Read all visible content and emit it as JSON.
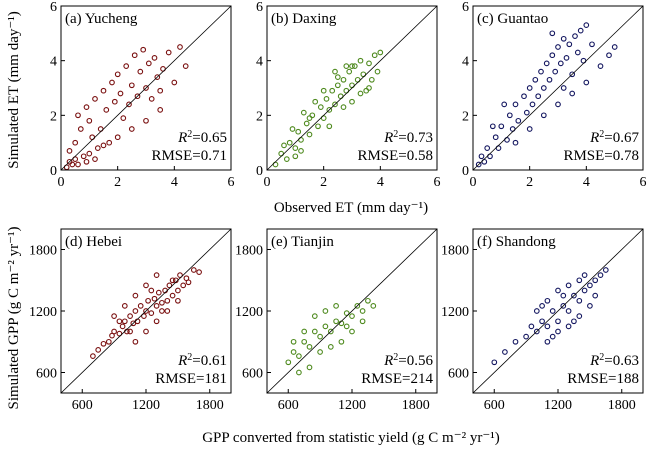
{
  "figure": {
    "ylabel_top": "Simulated ET (mm day⁻¹)",
    "xlabel_top": "Observed ET (mm day⁻¹)",
    "ylabel_bottom": "Simulated GPP (g C m⁻² yr⁻¹)",
    "xlabel_bottom": "GPP converted from statistic yield (g C m⁻² yr⁻¹)"
  },
  "chart_data": [
    {
      "type": "scatter",
      "panel": "(a) Yucheng",
      "marker_color": "#7a1010",
      "xlim": [
        0,
        6
      ],
      "ylim": [
        0,
        6
      ],
      "xticks": [
        "0",
        "2",
        "4",
        "6"
      ],
      "yticks": [
        "0",
        "2",
        "4",
        "6"
      ],
      "one_to_one_line": true,
      "r2": "=0.65",
      "rmse": "RMSE=0.71",
      "points": [
        [
          0.2,
          0.1
        ],
        [
          0.3,
          0.3
        ],
        [
          0.4,
          0.2
        ],
        [
          0.5,
          0.4
        ],
        [
          0.6,
          0.2
        ],
        [
          0.8,
          0.5
        ],
        [
          0.9,
          0.3
        ],
        [
          1.0,
          0.6
        ],
        [
          1.2,
          0.4
        ],
        [
          1.3,
          0.8
        ],
        [
          0.5,
          1.0
        ],
        [
          0.7,
          1.5
        ],
        [
          0.6,
          2.0
        ],
        [
          0.9,
          2.3
        ],
        [
          1.0,
          1.8
        ],
        [
          1.2,
          2.6
        ],
        [
          1.4,
          1.5
        ],
        [
          1.5,
          2.9
        ],
        [
          1.6,
          2.2
        ],
        [
          1.8,
          3.2
        ],
        [
          1.9,
          2.5
        ],
        [
          2.0,
          3.5
        ],
        [
          2.1,
          2.8
        ],
        [
          2.3,
          3.8
        ],
        [
          2.4,
          2.4
        ],
        [
          2.5,
          3.1
        ],
        [
          2.6,
          4.2
        ],
        [
          2.7,
          2.7
        ],
        [
          2.8,
          3.6
        ],
        [
          2.9,
          4.4
        ],
        [
          3.0,
          3.0
        ],
        [
          3.1,
          3.9
        ],
        [
          3.2,
          2.6
        ],
        [
          3.3,
          4.1
        ],
        [
          3.4,
          3.4
        ],
        [
          3.5,
          2.9
        ],
        [
          3.6,
          3.7
        ],
        [
          3.8,
          4.3
        ],
        [
          4.0,
          3.2
        ],
        [
          4.2,
          4.5
        ],
        [
          4.4,
          3.8
        ],
        [
          3.0,
          1.8
        ],
        [
          2.5,
          1.5
        ],
        [
          2.0,
          1.2
        ],
        [
          1.5,
          0.9
        ],
        [
          3.5,
          2.2
        ],
        [
          1.1,
          1.2
        ],
        [
          1.7,
          1.0
        ],
        [
          0.3,
          0.7
        ],
        [
          2.2,
          1.9
        ]
      ]
    },
    {
      "type": "scatter",
      "panel": "(b) Daxing",
      "marker_color": "#4e8a1e",
      "xlim": [
        0,
        6
      ],
      "ylim": [
        0,
        6
      ],
      "xticks": [
        "0",
        "2",
        "4",
        "6"
      ],
      "yticks": [
        "0",
        "2",
        "4",
        "6"
      ],
      "one_to_one_line": true,
      "r2": "=0.73",
      "rmse": "RMSE=0.58",
      "points": [
        [
          0.3,
          0.2
        ],
        [
          0.5,
          0.6
        ],
        [
          0.7,
          0.4
        ],
        [
          0.8,
          1.0
        ],
        [
          1.0,
          0.8
        ],
        [
          1.1,
          1.4
        ],
        [
          1.2,
          1.1
        ],
        [
          1.4,
          1.7
        ],
        [
          1.5,
          1.3
        ],
        [
          1.6,
          2.0
        ],
        [
          1.8,
          1.6
        ],
        [
          1.9,
          2.3
        ],
        [
          2.0,
          1.9
        ],
        [
          2.1,
          2.6
        ],
        [
          2.2,
          2.2
        ],
        [
          2.3,
          2.9
        ],
        [
          2.4,
          2.4
        ],
        [
          2.5,
          3.1
        ],
        [
          2.6,
          2.7
        ],
        [
          2.7,
          3.3
        ],
        [
          2.8,
          2.9
        ],
        [
          2.9,
          3.6
        ],
        [
          3.0,
          3.1
        ],
        [
          3.1,
          3.8
        ],
        [
          3.2,
          3.3
        ],
        [
          3.3,
          4.0
        ],
        [
          3.4,
          3.5
        ],
        [
          3.5,
          2.9
        ],
        [
          3.6,
          3.9
        ],
        [
          3.7,
          3.3
        ],
        [
          3.8,
          4.2
        ],
        [
          3.9,
          3.6
        ],
        [
          4.0,
          4.3
        ],
        [
          1.3,
          2.1
        ],
        [
          1.7,
          2.5
        ],
        [
          2.0,
          2.9
        ],
        [
          2.5,
          3.4
        ],
        [
          3.0,
          3.8
        ],
        [
          0.9,
          1.5
        ],
        [
          2.2,
          1.6
        ],
        [
          2.7,
          2.3
        ],
        [
          3.3,
          2.8
        ],
        [
          1.0,
          0.5
        ],
        [
          0.6,
          0.9
        ],
        [
          3.6,
          3.0
        ],
        [
          2.4,
          3.6
        ],
        [
          1.5,
          1.9
        ],
        [
          3.0,
          2.5
        ],
        [
          2.8,
          3.8
        ],
        [
          1.2,
          0.7
        ]
      ]
    },
    {
      "type": "scatter",
      "panel": "(c) Guantao",
      "marker_color": "#141760",
      "xlim": [
        0,
        6
      ],
      "ylim": [
        0,
        6
      ],
      "xticks": [
        "0",
        "2",
        "4",
        "6"
      ],
      "yticks": [
        "0",
        "2",
        "4",
        "6"
      ],
      "one_to_one_line": true,
      "r2": "=0.67",
      "rmse": "RMSE=0.78",
      "points": [
        [
          0.2,
          0.2
        ],
        [
          0.3,
          0.5
        ],
        [
          0.4,
          0.3
        ],
        [
          0.5,
          0.8
        ],
        [
          0.6,
          0.5
        ],
        [
          0.8,
          1.2
        ],
        [
          0.9,
          0.8
        ],
        [
          1.0,
          1.6
        ],
        [
          1.2,
          1.1
        ],
        [
          1.3,
          2.0
        ],
        [
          1.4,
          1.5
        ],
        [
          1.5,
          2.4
        ],
        [
          1.6,
          1.8
        ],
        [
          1.8,
          2.7
        ],
        [
          1.9,
          2.1
        ],
        [
          2.0,
          3.0
        ],
        [
          2.1,
          2.4
        ],
        [
          2.2,
          3.3
        ],
        [
          2.3,
          2.7
        ],
        [
          2.4,
          3.6
        ],
        [
          2.5,
          3.0
        ],
        [
          2.6,
          3.9
        ],
        [
          2.7,
          3.3
        ],
        [
          2.8,
          4.2
        ],
        [
          2.9,
          3.6
        ],
        [
          3.0,
          4.5
        ],
        [
          3.1,
          3.9
        ],
        [
          3.2,
          4.8
        ],
        [
          3.3,
          4.1
        ],
        [
          3.4,
          4.6
        ],
        [
          3.5,
          3.5
        ],
        [
          3.6,
          4.9
        ],
        [
          3.7,
          4.3
        ],
        [
          3.8,
          5.1
        ],
        [
          3.9,
          4.0
        ],
        [
          4.0,
          5.3
        ],
        [
          4.2,
          4.6
        ],
        [
          4.5,
          3.8
        ],
        [
          4.8,
          4.2
        ],
        [
          5.0,
          4.5
        ],
        [
          2.0,
          1.5
        ],
        [
          2.5,
          2.0
        ],
        [
          3.0,
          2.4
        ],
        [
          3.5,
          2.8
        ],
        [
          1.5,
          1.0
        ],
        [
          4.0,
          3.2
        ],
        [
          0.7,
          1.6
        ],
        [
          1.1,
          2.4
        ],
        [
          2.8,
          5.0
        ],
        [
          3.2,
          3.0
        ]
      ]
    },
    {
      "type": "scatter",
      "panel": "(d) Hebei",
      "marker_color": "#7a1010",
      "xlim": [
        400,
        2000
      ],
      "ylim": [
        400,
        2000
      ],
      "xticks": [
        "600",
        "1200",
        "1800"
      ],
      "yticks": [
        "600",
        "1200",
        "1800"
      ],
      "one_to_one_line": true,
      "r2": "=0.61",
      "rmse": "RMSE=181",
      "points": [
        [
          700,
          760
        ],
        [
          750,
          820
        ],
        [
          800,
          880
        ],
        [
          850,
          900
        ],
        [
          880,
          960
        ],
        [
          900,
          1000
        ],
        [
          950,
          980
        ],
        [
          980,
          1050
        ],
        [
          1000,
          1100
        ],
        [
          1020,
          1000
        ],
        [
          1050,
          1150
        ],
        [
          1080,
          1080
        ],
        [
          1100,
          1200
        ],
        [
          1120,
          1100
        ],
        [
          1150,
          1250
        ],
        [
          1180,
          1150
        ],
        [
          1200,
          1200
        ],
        [
          1220,
          1300
        ],
        [
          1250,
          1180
        ],
        [
          1280,
          1320
        ],
        [
          1300,
          1250
        ],
        [
          1320,
          1380
        ],
        [
          1350,
          1280
        ],
        [
          1380,
          1400
        ],
        [
          1400,
          1300
        ],
        [
          1420,
          1450
        ],
        [
          1450,
          1350
        ],
        [
          1480,
          1500
        ],
        [
          1500,
          1400
        ],
        [
          1520,
          1550
        ],
        [
          1550,
          1450
        ],
        [
          1580,
          1520
        ],
        [
          1600,
          1480
        ],
        [
          1650,
          1600
        ],
        [
          1700,
          1580
        ],
        [
          1100,
          900
        ],
        [
          1200,
          1000
        ],
        [
          1300,
          1100
        ],
        [
          1400,
          1200
        ],
        [
          1500,
          1300
        ],
        [
          900,
          1150
        ],
        [
          1000,
          1250
        ],
        [
          1100,
          1350
        ],
        [
          1200,
          1450
        ],
        [
          1300,
          1550
        ],
        [
          950,
          1100
        ],
        [
          1250,
          1400
        ],
        [
          1350,
          1200
        ],
        [
          1450,
          1500
        ],
        [
          1050,
          1000
        ]
      ]
    },
    {
      "type": "scatter",
      "panel": "(e) Tianjin",
      "marker_color": "#4e8a1e",
      "xlim": [
        400,
        2000
      ],
      "ylim": [
        400,
        2000
      ],
      "xticks": [
        "600",
        "1200",
        "1800"
      ],
      "yticks": [
        "600",
        "1200",
        "1800"
      ],
      "one_to_one_line": true,
      "r2": "=0.56",
      "rmse": "RMSE=214",
      "points": [
        [
          600,
          700
        ],
        [
          650,
          800
        ],
        [
          700,
          760
        ],
        [
          750,
          900
        ],
        [
          800,
          850
        ],
        [
          850,
          1000
        ],
        [
          900,
          950
        ],
        [
          950,
          1050
        ],
        [
          1000,
          1000
        ],
        [
          1050,
          1100
        ],
        [
          1100,
          1080
        ],
        [
          1150,
          1180
        ],
        [
          1200,
          1150
        ],
        [
          1250,
          1250
        ],
        [
          1300,
          1200
        ],
        [
          1350,
          1300
        ],
        [
          1400,
          1250
        ],
        [
          700,
          600
        ],
        [
          800,
          650
        ],
        [
          900,
          800
        ],
        [
          1000,
          850
        ],
        [
          1100,
          900
        ],
        [
          1200,
          1000
        ],
        [
          1300,
          1100
        ],
        [
          650,
          900
        ],
        [
          750,
          1000
        ],
        [
          850,
          1150
        ],
        [
          950,
          1200
        ],
        [
          1050,
          1250
        ],
        [
          1150,
          1050
        ]
      ]
    },
    {
      "type": "scatter",
      "panel": "(f) Shandong",
      "marker_color": "#141760",
      "xlim": [
        400,
        2000
      ],
      "ylim": [
        400,
        2000
      ],
      "xticks": [
        "600",
        "1200",
        "1800"
      ],
      "yticks": [
        "600",
        "1200",
        "1800"
      ],
      "one_to_one_line": true,
      "r2": "=0.63",
      "rmse": "RMSE=188",
      "points": [
        [
          600,
          700
        ],
        [
          700,
          800
        ],
        [
          800,
          900
        ],
        [
          900,
          950
        ],
        [
          950,
          1050
        ],
        [
          1000,
          1000
        ],
        [
          1050,
          1100
        ],
        [
          1100,
          1050
        ],
        [
          1150,
          1200
        ],
        [
          1200,
          1100
        ],
        [
          1250,
          1250
        ],
        [
          1300,
          1200
        ],
        [
          1350,
          1350
        ],
        [
          1400,
          1300
        ],
        [
          1450,
          1400
        ],
        [
          1500,
          1450
        ],
        [
          1550,
          1500
        ],
        [
          1600,
          1550
        ],
        [
          1650,
          1600
        ],
        [
          1000,
          1200
        ],
        [
          1100,
          1300
        ],
        [
          1200,
          1400
        ],
        [
          1300,
          1450
        ],
        [
          1400,
          1500
        ],
        [
          1100,
          900
        ],
        [
          1200,
          1000
        ],
        [
          1300,
          1050
        ],
        [
          1400,
          1150
        ],
        [
          1500,
          1250
        ],
        [
          1250,
          1350
        ],
        [
          1350,
          1100
        ],
        [
          1450,
          1550
        ],
        [
          1150,
          950
        ],
        [
          1050,
          1250
        ],
        [
          1550,
          1350
        ]
      ]
    }
  ]
}
